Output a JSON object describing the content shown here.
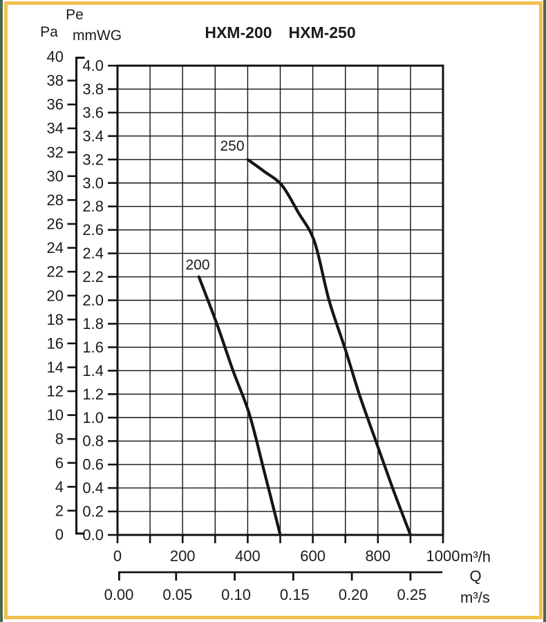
{
  "header": {
    "pressure_symbol": "Pe",
    "pa_unit": "Pa",
    "mmwg_unit": "mmWG",
    "title_models": [
      "HXM-200",
      "HXM-250"
    ]
  },
  "axes": {
    "y_left_pa": {
      "unit": "Pa",
      "min": 0,
      "max": 40,
      "tick_step": 2,
      "tick_labels": [
        "40",
        "38",
        "36",
        "34",
        "32",
        "30",
        "28",
        "26",
        "24",
        "22",
        "20",
        "18",
        "16",
        "14",
        "12",
        "10",
        "8",
        "6",
        "4",
        "2",
        "0"
      ]
    },
    "y_mmwg": {
      "unit": "mmWG",
      "min": 0.0,
      "max": 4.0,
      "tick_step": 0.2,
      "tick_labels": [
        "4.0",
        "3.8",
        "3.6",
        "3.4",
        "3.2",
        "3.0",
        "2.8",
        "2.6",
        "2.4",
        "2.2",
        "2.0",
        "1.8",
        "1.6",
        "1.4",
        "1.2",
        "1.0",
        "0.8",
        "0.6",
        "0.4",
        "0.2",
        "0.0"
      ]
    },
    "x_primary": {
      "unit": "m³/h",
      "quantity_symbol": "Q",
      "min": 0,
      "max": 1000,
      "grid_step": 100,
      "label_step": 200,
      "tick_labels": [
        "0",
        "200",
        "400",
        "600",
        "800",
        "1000"
      ]
    },
    "x_secondary": {
      "unit": "m³/s",
      "tick_labels": [
        "0.00",
        "0.05",
        "0.10",
        "0.15",
        "0.20",
        "0.25"
      ],
      "tick_positions_m3h": [
        0,
        180,
        360,
        540,
        720,
        900
      ]
    }
  },
  "chart_data": {
    "type": "line",
    "title": "HXM-200 HXM-250",
    "xlabel": "Q (m³/h, m³/s)",
    "ylabel": "Pe (Pa, mmWG)",
    "x_range_m3h": [
      0,
      1000
    ],
    "y_range_mmwg": [
      0.0,
      4.0
    ],
    "y_range_pa": [
      0,
      40
    ],
    "grid": true,
    "curve_color": "#151515",
    "series": [
      {
        "name": "200",
        "model": "HXM-200",
        "points_q_m3h_p_mmwg": [
          [
            250,
            2.2
          ],
          [
            305,
            1.8
          ],
          [
            355,
            1.4
          ],
          [
            405,
            1.03
          ],
          [
            450,
            0.55
          ],
          [
            500,
            0
          ]
        ]
      },
      {
        "name": "250",
        "model": "HXM-250",
        "points_q_m3h_p_mmwg": [
          [
            400,
            3.2
          ],
          [
            450,
            3.1
          ],
          [
            505,
            2.98
          ],
          [
            555,
            2.75
          ],
          [
            605,
            2.5
          ],
          [
            650,
            2.0
          ],
          [
            700,
            1.58
          ],
          [
            745,
            1.18
          ],
          [
            795,
            0.79
          ],
          [
            845,
            0.4
          ],
          [
            900,
            0
          ]
        ]
      }
    ]
  }
}
